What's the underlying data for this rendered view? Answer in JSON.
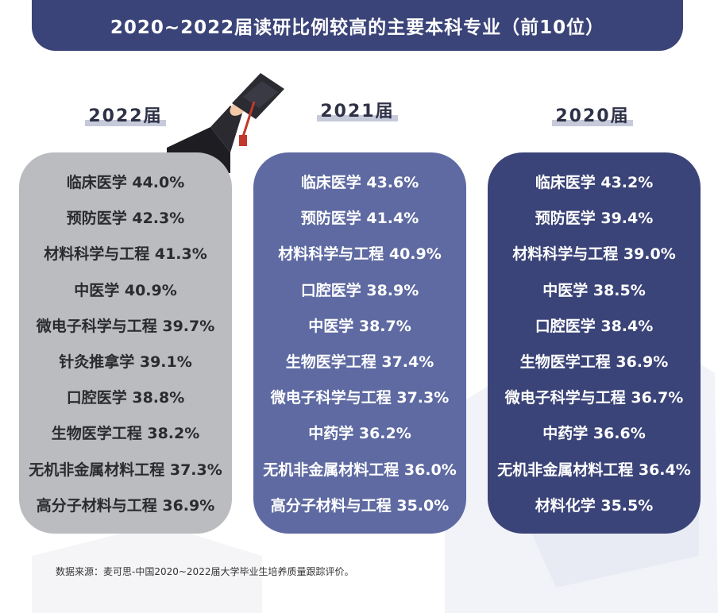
{
  "title": "2020~2022届读研比例较高的主要本科专业（前10位）",
  "chart_data": [
    {
      "type": "table",
      "title": "2022届",
      "rows": [
        {
          "major": "临床医学",
          "value": "44.0%"
        },
        {
          "major": "预防医学",
          "value": "42.3%"
        },
        {
          "major": "材料科学与工程",
          "value": "41.3%"
        },
        {
          "major": "中医学",
          "value": "40.9%"
        },
        {
          "major": "微电子科学与工程",
          "value": "39.7%"
        },
        {
          "major": "针灸推拿学",
          "value": "39.1%"
        },
        {
          "major": "口腔医学",
          "value": "38.8%"
        },
        {
          "major": "生物医学工程",
          "value": "38.2%"
        },
        {
          "major": "无机非金属材料工程",
          "value": "37.3%"
        },
        {
          "major": "高分子材料与工程",
          "value": "36.9%"
        }
      ]
    },
    {
      "type": "table",
      "title": "2021届",
      "rows": [
        {
          "major": "临床医学",
          "value": "43.6%"
        },
        {
          "major": "预防医学",
          "value": "41.4%"
        },
        {
          "major": "材料科学与工程",
          "value": "40.9%"
        },
        {
          "major": "口腔医学",
          "value": "38.9%"
        },
        {
          "major": "中医学",
          "value": "38.7%"
        },
        {
          "major": "生物医学工程",
          "value": "37.4%"
        },
        {
          "major": "微电子科学与工程",
          "value": "37.3%"
        },
        {
          "major": "中药学",
          "value": "36.2%"
        },
        {
          "major": "无机非金属材料工程",
          "value": "36.0%"
        },
        {
          "major": "高分子材料与工程",
          "value": "35.0%"
        }
      ]
    },
    {
      "type": "table",
      "title": "2020届",
      "rows": [
        {
          "major": "临床医学",
          "value": "43.2%"
        },
        {
          "major": "预防医学",
          "value": "39.4%"
        },
        {
          "major": "材料科学与工程",
          "value": "39.0%"
        },
        {
          "major": "中医学",
          "value": "38.5%"
        },
        {
          "major": "口腔医学",
          "value": "38.4%"
        },
        {
          "major": "生物医学工程",
          "value": "36.9%"
        },
        {
          "major": "微电子科学与工程",
          "value": "36.7%"
        },
        {
          "major": "中药学",
          "value": "36.6%"
        },
        {
          "major": "无机非金属材料工程",
          "value": "36.4%"
        },
        {
          "major": "材料化学",
          "value": "35.5%"
        }
      ]
    }
  ],
  "source": "数据来源：麦可思-中国2020~2022届大学毕业生培养质量跟踪评价。",
  "colors": {
    "header": "#3b4478",
    "card_2022": "#bbbcbf",
    "card_2021": "#5e6aa1",
    "card_2020": "#3b4478"
  },
  "icons": {
    "decoration": "graduation-cap-icon"
  }
}
